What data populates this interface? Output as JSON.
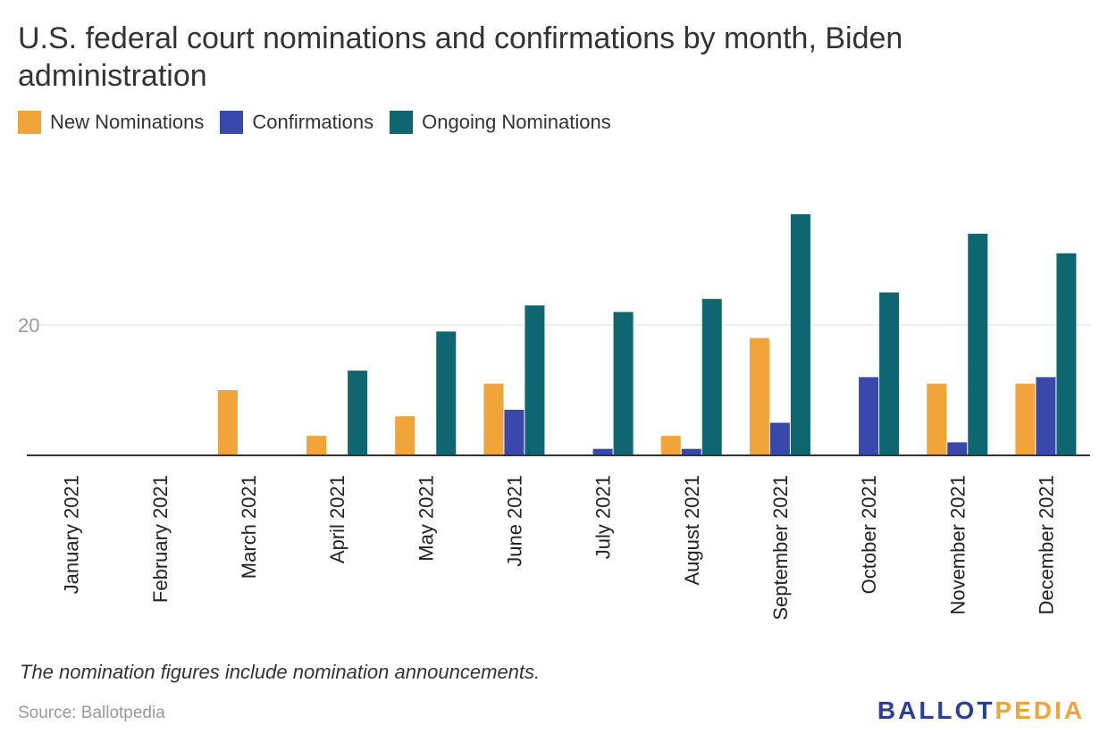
{
  "title": "U.S. federal court nominations and confirmations by month, Biden administration",
  "note": "The nomination figures include nomination announcements.",
  "source": "Source: Ballotpedia",
  "logo": {
    "part1": "BALLOT",
    "part2": "PEDIA"
  },
  "colors": {
    "new_nominations": "#f0a43a",
    "confirmations": "#3949ab",
    "ongoing_nominations": "#0e6770",
    "axis": "#333333",
    "grid": "#e0e0e0"
  },
  "chart_data": {
    "type": "bar",
    "title": "U.S. federal court nominations and confirmations by month, Biden administration",
    "xlabel": "",
    "ylabel": "",
    "ylim": [
      0,
      40
    ],
    "yticks": [
      20
    ],
    "grid": true,
    "legend_position": "top-left",
    "categories": [
      "January 2021",
      "February 2021",
      "March 2021",
      "April 2021",
      "May 2021",
      "June 2021",
      "July 2021",
      "August 2021",
      "September 2021",
      "October 2021",
      "November 2021",
      "December 2021"
    ],
    "series": [
      {
        "name": "New Nominations",
        "key": "new_nominations",
        "values": [
          0,
          0,
          10,
          3,
          6,
          11,
          0,
          3,
          18,
          0,
          11,
          11
        ]
      },
      {
        "name": "Confirmations",
        "key": "confirmations",
        "values": [
          0,
          0,
          0,
          0,
          0,
          7,
          1,
          1,
          5,
          12,
          2,
          12
        ]
      },
      {
        "name": "Ongoing Nominations",
        "key": "ongoing_nominations",
        "values": [
          0,
          0,
          0,
          13,
          19,
          23,
          22,
          24,
          37,
          25,
          34,
          31
        ]
      }
    ]
  }
}
